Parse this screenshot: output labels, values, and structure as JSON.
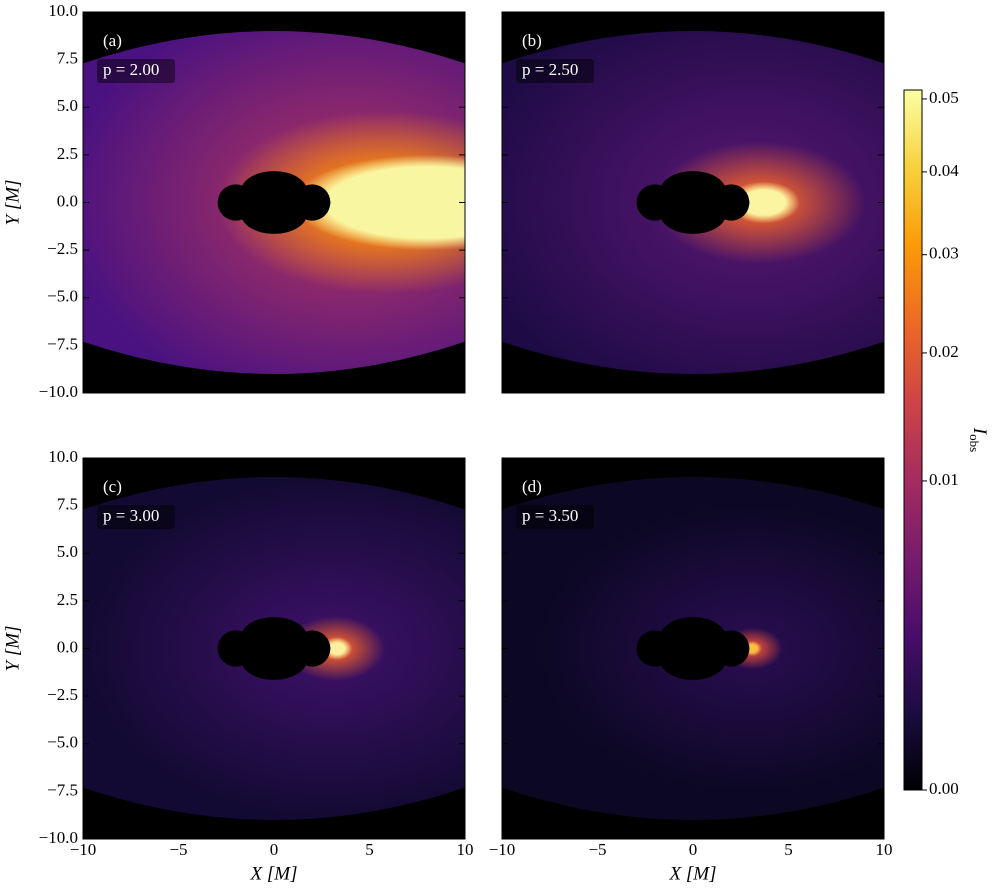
{
  "chart_data": [
    {
      "type": "heatmap",
      "annotations": [
        "(a)",
        "p = 2.00"
      ],
      "ylabel": "Y [M]",
      "xlim": [
        -10,
        10
      ],
      "ylim": [
        -10,
        10
      ],
      "xticks": [
        -10,
        -5,
        0,
        5,
        10
      ],
      "yticks": [
        {
          "value": -10,
          "label": "−10.0"
        },
        {
          "value": -7.5,
          "label": "−7.5"
        },
        {
          "value": -5,
          "label": "−5.0"
        },
        {
          "value": -2.5,
          "label": "−2.5"
        },
        {
          "value": 0,
          "label": "0.0"
        },
        {
          "value": 2.5,
          "label": "2.5"
        },
        {
          "value": 5,
          "label": "5.0"
        },
        {
          "value": 7.5,
          "label": "7.5"
        },
        {
          "value": 10,
          "label": "10.0"
        }
      ]
    },
    {
      "type": "heatmap",
      "annotations": [
        "(b)",
        "p = 2.50"
      ],
      "xlim": [
        -10,
        10
      ],
      "ylim": [
        -10,
        10
      ],
      "xticks": [
        -10,
        -5,
        0,
        5,
        10
      ],
      "yticks": [
        -10,
        -7.5,
        -5,
        -2.5,
        0,
        2.5,
        5,
        7.5,
        10
      ]
    },
    {
      "type": "heatmap",
      "annotations": [
        "(c)",
        "p = 3.00"
      ],
      "xlabel": "X [M]",
      "ylabel": "Y [M]",
      "xlim": [
        -10,
        10
      ],
      "ylim": [
        -10,
        10
      ],
      "xticks": [
        {
          "value": -10,
          "label": "−10"
        },
        {
          "value": -5,
          "label": "−5"
        },
        0,
        5,
        10
      ],
      "yticks": [
        {
          "value": -10,
          "label": "−10.0"
        },
        {
          "value": -7.5,
          "label": "−7.5"
        },
        {
          "value": -5,
          "label": "−5.0"
        },
        {
          "value": -2.5,
          "label": "−2.5"
        },
        {
          "value": 0,
          "label": "0.0"
        },
        {
          "value": 2.5,
          "label": "2.5"
        },
        {
          "value": 5,
          "label": "5.0"
        },
        {
          "value": 7.5,
          "label": "7.5"
        },
        {
          "value": 10,
          "label": "10.0"
        }
      ]
    },
    {
      "type": "heatmap",
      "annotations": [
        "(d)",
        "p = 3.50"
      ],
      "xlabel": "X [M]",
      "xlim": [
        -10,
        10
      ],
      "ylim": [
        -10,
        10
      ],
      "xticks": [
        {
          "value": -10,
          "label": "−10"
        },
        {
          "value": -5,
          "label": "−5"
        },
        0,
        5,
        10
      ],
      "yticks": [
        -10,
        -7.5,
        -5,
        -2.5,
        0,
        2.5,
        5,
        7.5,
        10
      ]
    },
    {
      "type": "colorbar",
      "label": "I",
      "label_subscript": "obs",
      "scale": "sqrt",
      "colormap": "inferno",
      "lim": [
        0,
        0.0513
      ],
      "ticks": [
        {
          "value": 0,
          "label": "0.00"
        },
        0.01,
        0.02,
        0.03,
        0.04,
        0.05
      ]
    }
  ]
}
